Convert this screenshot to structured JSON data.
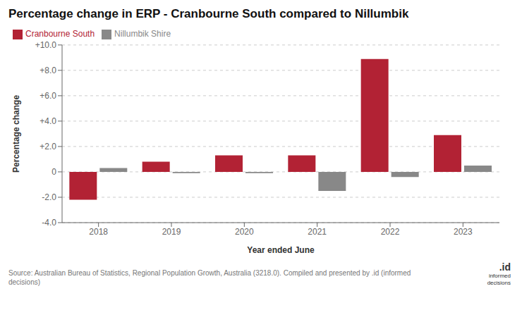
{
  "chart_data": {
    "type": "bar",
    "title": "Percentage change in ERP - Cranbourne South compared to Nillumbik",
    "xlabel": "Year ended June",
    "ylabel": "Percentage change",
    "categories": [
      "2018",
      "2019",
      "2020",
      "2021",
      "2022",
      "2023"
    ],
    "series": [
      {
        "name": "Cranbourne South",
        "color": "#b22234",
        "values": [
          -2.2,
          0.8,
          1.3,
          1.3,
          8.9,
          2.9
        ]
      },
      {
        "name": "Nillumbik Shire",
        "color": "#888888",
        "values": [
          0.3,
          -0.1,
          -0.1,
          -1.5,
          -0.4,
          0.5
        ]
      }
    ],
    "ylim": [
      -4.0,
      10.0
    ],
    "yticks": [
      {
        "value": -4.0,
        "label": "-4.0"
      },
      {
        "value": -2.0,
        "label": "-2.0"
      },
      0,
      {
        "value": 2.0,
        "label": "+2.0"
      },
      {
        "value": 4.0,
        "label": "+4.0"
      },
      {
        "value": 6.0,
        "label": "+6.0"
      },
      {
        "value": 8.0,
        "label": "+8.0"
      },
      {
        "value": 10.0,
        "label": "+10.0"
      }
    ],
    "grid": true,
    "legend": "upper left",
    "annotations": [
      "Source: Australian Bureau of Statistics, Regional Population Growth, Australia (3218.0). Compiled and presented by .id (informed\ndecisions)",
      ".id",
      "informed\ndecisions"
    ]
  }
}
